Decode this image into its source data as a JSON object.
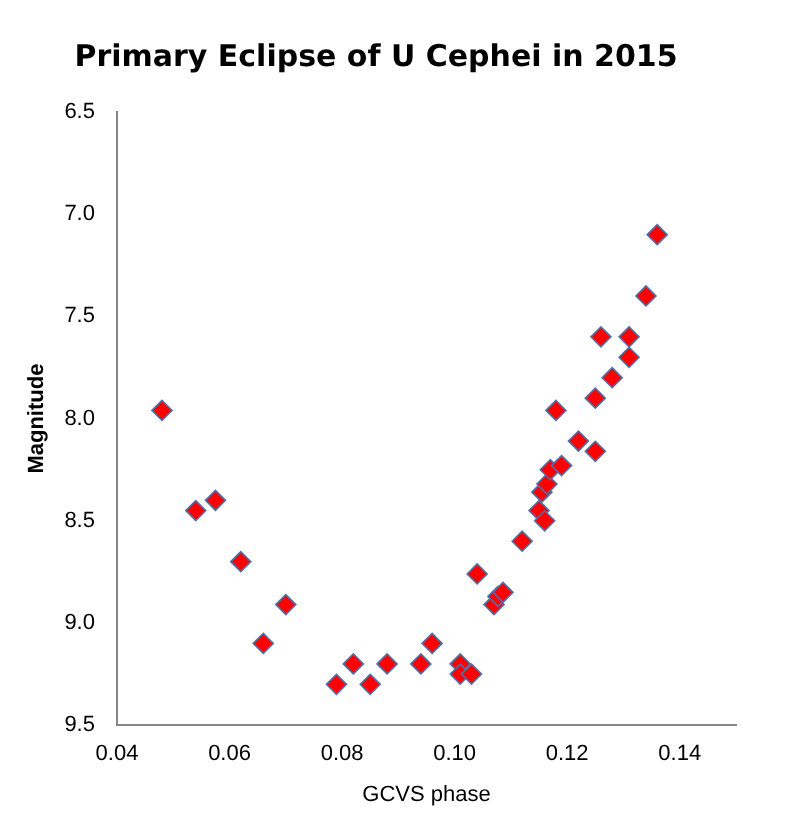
{
  "chart_data": {
    "type": "scatter",
    "title": "Primary Eclipse of U Cephei in 2015",
    "xlabel": "GCVS phase",
    "ylabel": "Magnitude",
    "series": [
      {
        "color": "#ff0000",
        "x": [
          0.048,
          0.054,
          0.0575,
          0.062,
          0.066,
          0.07,
          0.079,
          0.082,
          0.085,
          0.088,
          0.094,
          0.096,
          0.101,
          0.101,
          0.103,
          0.104,
          0.107,
          0.1077,
          0.1086,
          0.112,
          0.115,
          0.116,
          0.1155,
          0.1164,
          0.117,
          0.118,
          0.119,
          0.122,
          0.125,
          0.125,
          0.126,
          0.128,
          0.131,
          0.131,
          0.134,
          0.136
        ],
        "values": [
          7.96,
          8.45,
          8.4,
          8.7,
          9.1,
          8.91,
          9.3,
          9.2,
          9.3,
          9.2,
          9.2,
          9.1,
          9.2,
          9.25,
          9.25,
          8.76,
          8.91,
          8.87,
          8.85,
          8.6,
          8.45,
          8.5,
          8.36,
          8.32,
          8.25,
          7.96,
          8.23,
          8.11,
          8.16,
          7.9,
          7.6,
          7.8,
          7.6,
          7.7,
          7.4,
          7.1
        ]
      }
    ],
    "xlim": [
      0.04,
      0.15
    ],
    "xticks": [
      0.04,
      0.06,
      0.08,
      {
        "value": 0.1,
        "label": "0.10"
      },
      0.12,
      0.14
    ],
    "ylim": [
      9.5,
      6.5
    ],
    "yticks": [
      6.5,
      {
        "value": 7,
        "label": "7.0"
      },
      7.5,
      {
        "value": 8,
        "label": "8.0"
      },
      8.5,
      {
        "value": 9,
        "label": "9.0"
      },
      9.5
    ],
    "marker": "diamond",
    "grid": false,
    "legend": false
  }
}
